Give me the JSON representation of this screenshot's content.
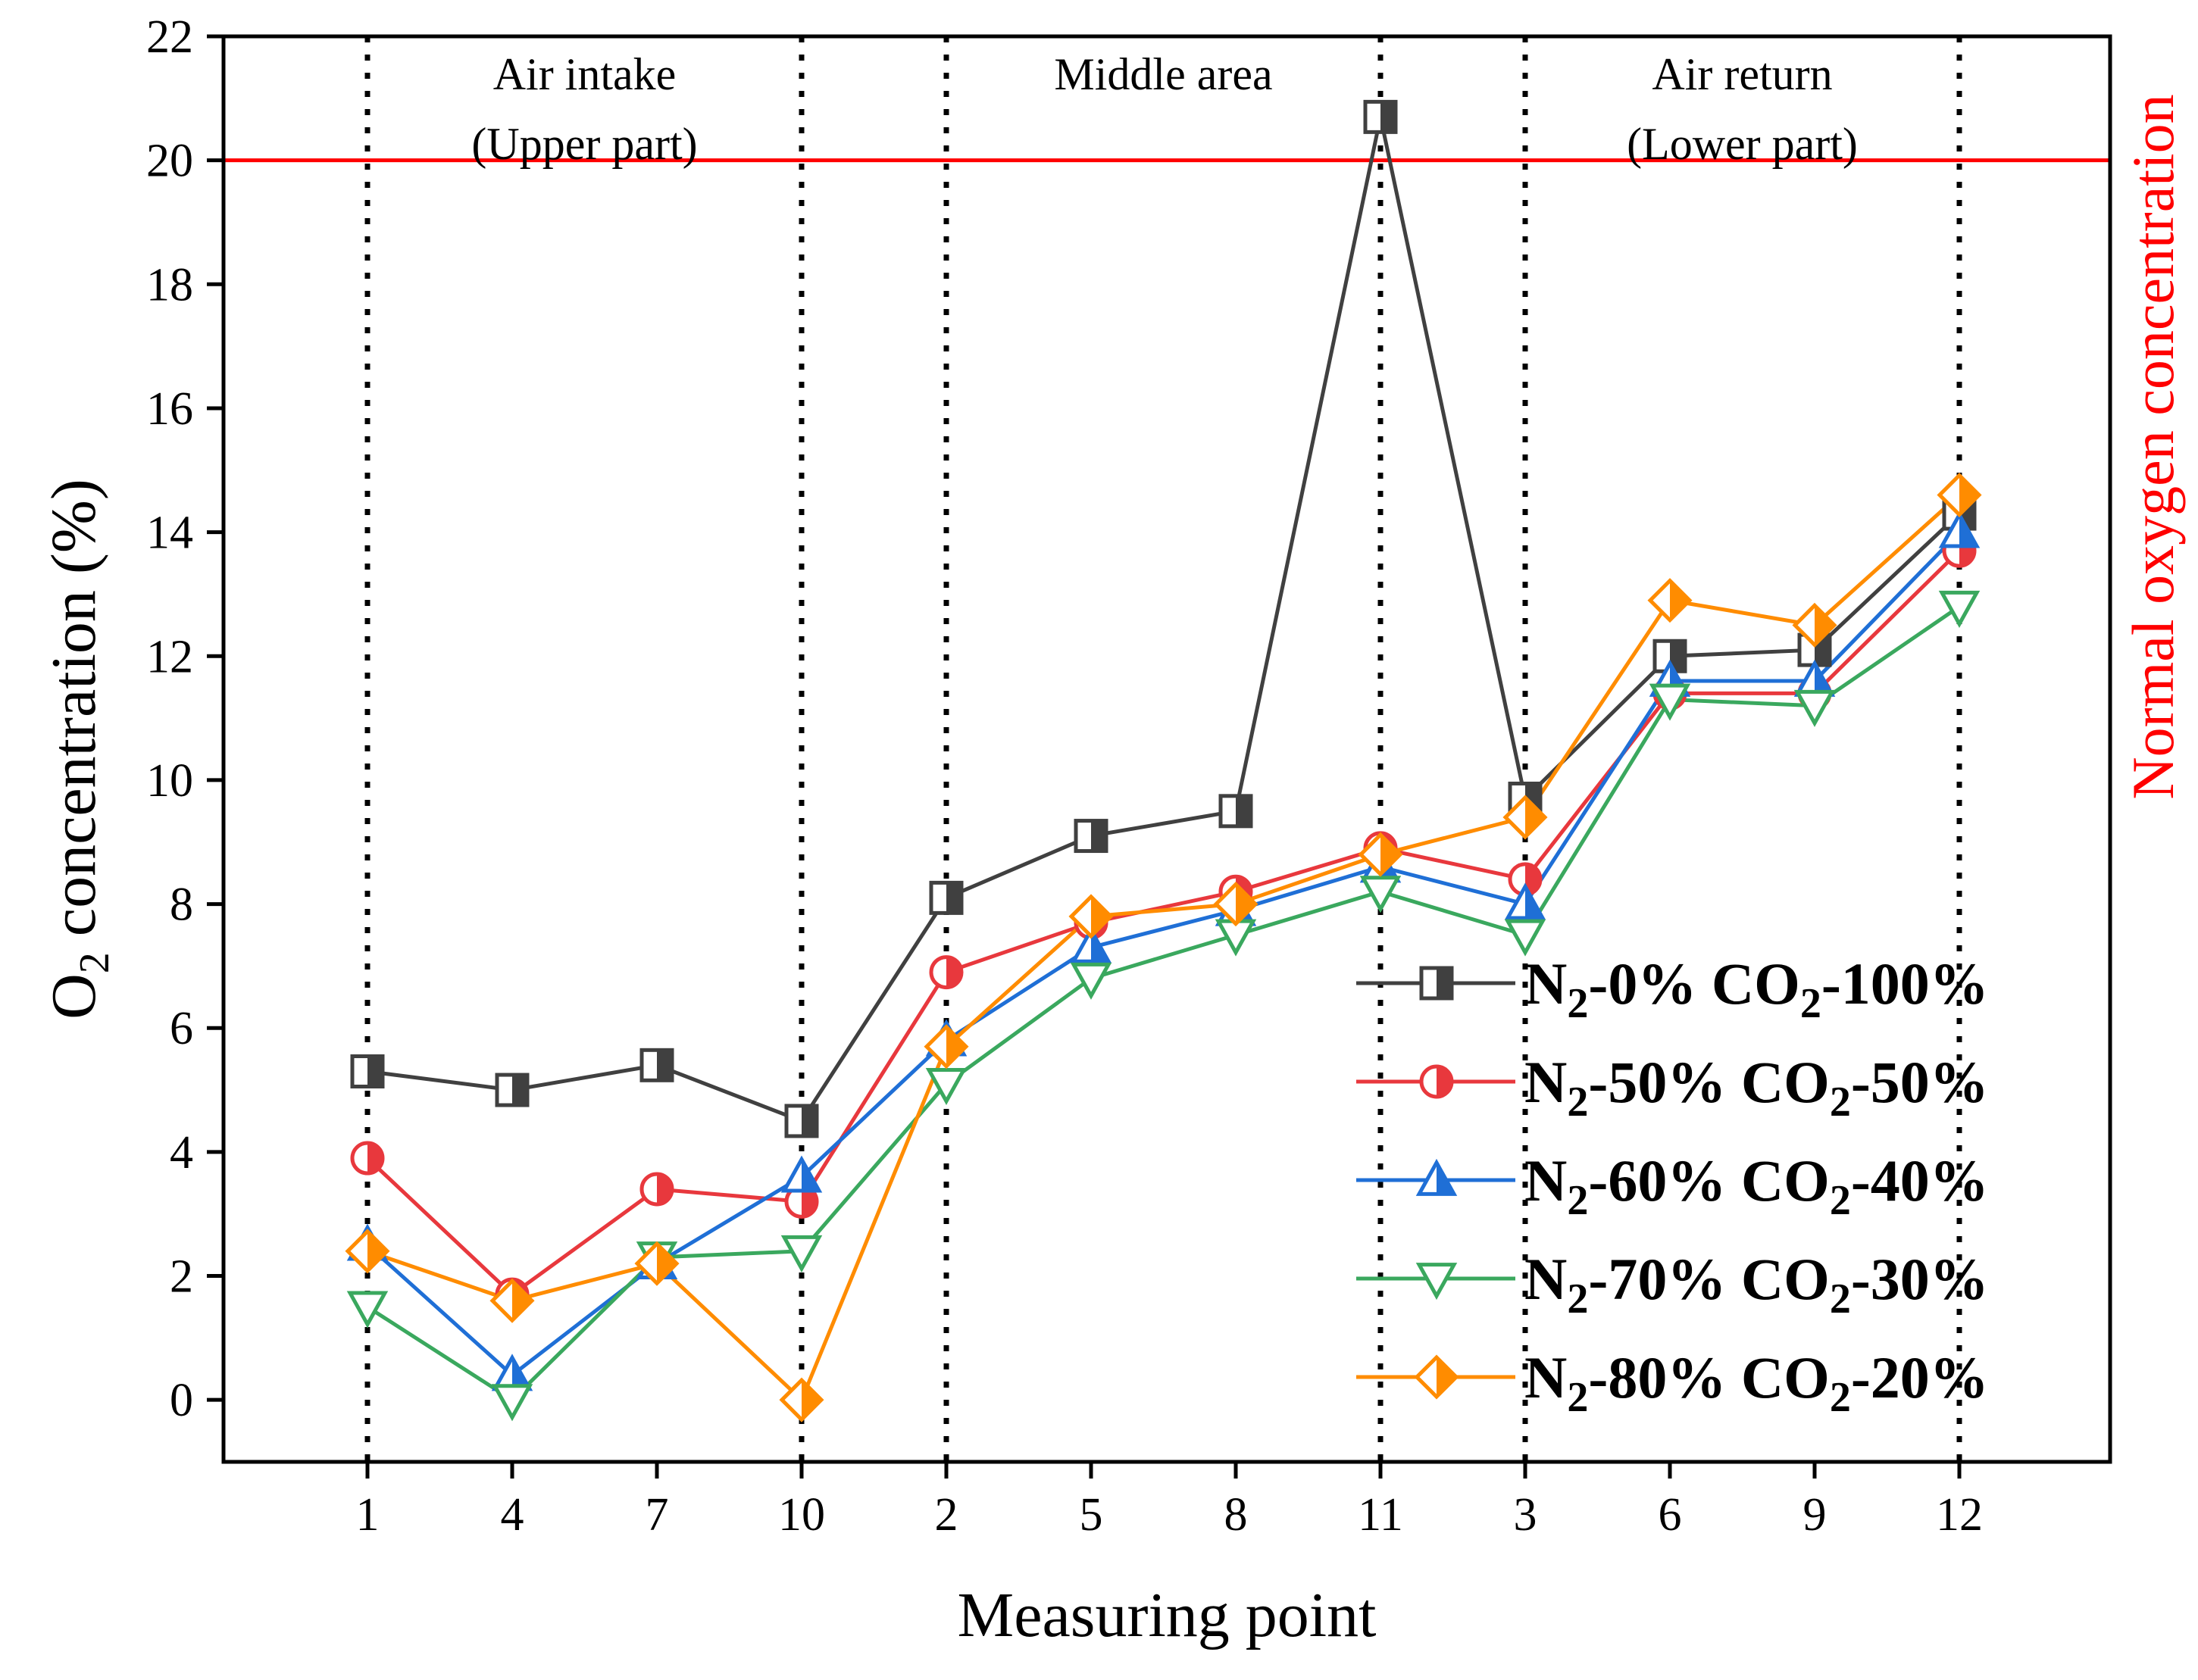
{
  "chart_data": {
    "type": "line",
    "xlabel": "Measuring point",
    "ylabel_main": "O",
    "ylabel_sub": "2",
    "ylabel_rest": " concentration (%)",
    "right_label": "Normal oxygen concentration",
    "categories": [
      "1",
      "4",
      "7",
      "10",
      "2",
      "5",
      "8",
      "11",
      "3",
      "6",
      "9",
      "12"
    ],
    "ylim": [
      -1,
      22
    ],
    "yticks": [
      0,
      2,
      4,
      6,
      8,
      10,
      12,
      14,
      16,
      18,
      20,
      22
    ],
    "reference_line": {
      "value": 20,
      "color": "#ff0000"
    },
    "region_dividers_after_index": [
      0,
      3,
      4,
      7,
      8,
      11
    ],
    "regions": [
      {
        "lines": [
          "Air intake",
          "(Upper part)"
        ],
        "from": 0,
        "to": 3
      },
      {
        "lines": [
          "Middle area"
        ],
        "from": 4,
        "to": 7
      },
      {
        "lines": [
          "Air return",
          "(Lower part)"
        ],
        "from": 8,
        "to": 11
      }
    ],
    "legend_position": "lower-right",
    "series": [
      {
        "name": "N2-0% CO2-100%",
        "legend": {
          "a": "N",
          "sa": "2",
          "b": "-0% CO",
          "sb": "2",
          "c": "-100%"
        },
        "color": "#404040",
        "marker": "square",
        "values": [
          5.3,
          5.0,
          5.4,
          4.5,
          8.1,
          9.1,
          9.5,
          20.7,
          9.7,
          12.0,
          12.1,
          14.3
        ]
      },
      {
        "name": "N2-50% CO2-50%",
        "legend": {
          "a": "N",
          "sa": "2",
          "b": "-50% CO",
          "sb": "2",
          "c": "-50%"
        },
        "color": "#e8383d",
        "marker": "circle",
        "values": [
          3.9,
          1.7,
          3.4,
          3.2,
          6.9,
          7.7,
          8.2,
          8.9,
          8.4,
          11.4,
          11.4,
          13.7
        ]
      },
      {
        "name": "N2-60% CO2-40%",
        "legend": {
          "a": "N",
          "sa": "2",
          "b": "-60% CO",
          "sb": "2",
          "c": "-40%"
        },
        "color": "#1f6fd6",
        "marker": "triangle-up",
        "values": [
          2.5,
          0.4,
          2.2,
          3.6,
          5.8,
          7.3,
          7.9,
          8.6,
          8.0,
          11.6,
          11.6,
          14.0
        ]
      },
      {
        "name": "N2-70% CO2-30%",
        "legend": {
          "a": "N",
          "sa": "2",
          "b": "-70% CO",
          "sb": "2",
          "c": "-30%"
        },
        "color": "#3aa85e",
        "marker": "triangle-down",
        "values": [
          1.5,
          0.0,
          2.3,
          2.4,
          5.1,
          6.8,
          7.5,
          8.2,
          7.5,
          11.3,
          11.2,
          12.8
        ]
      },
      {
        "name": "N2-80% CO2-20%",
        "legend": {
          "a": "N",
          "sa": "2",
          "b": "-80% CO",
          "sb": "2",
          "c": "-20%"
        },
        "color": "#ff8c00",
        "marker": "diamond",
        "values": [
          2.4,
          1.6,
          2.2,
          0.0,
          5.7,
          7.8,
          8.0,
          8.8,
          9.4,
          12.9,
          12.5,
          14.6
        ]
      }
    ]
  }
}
